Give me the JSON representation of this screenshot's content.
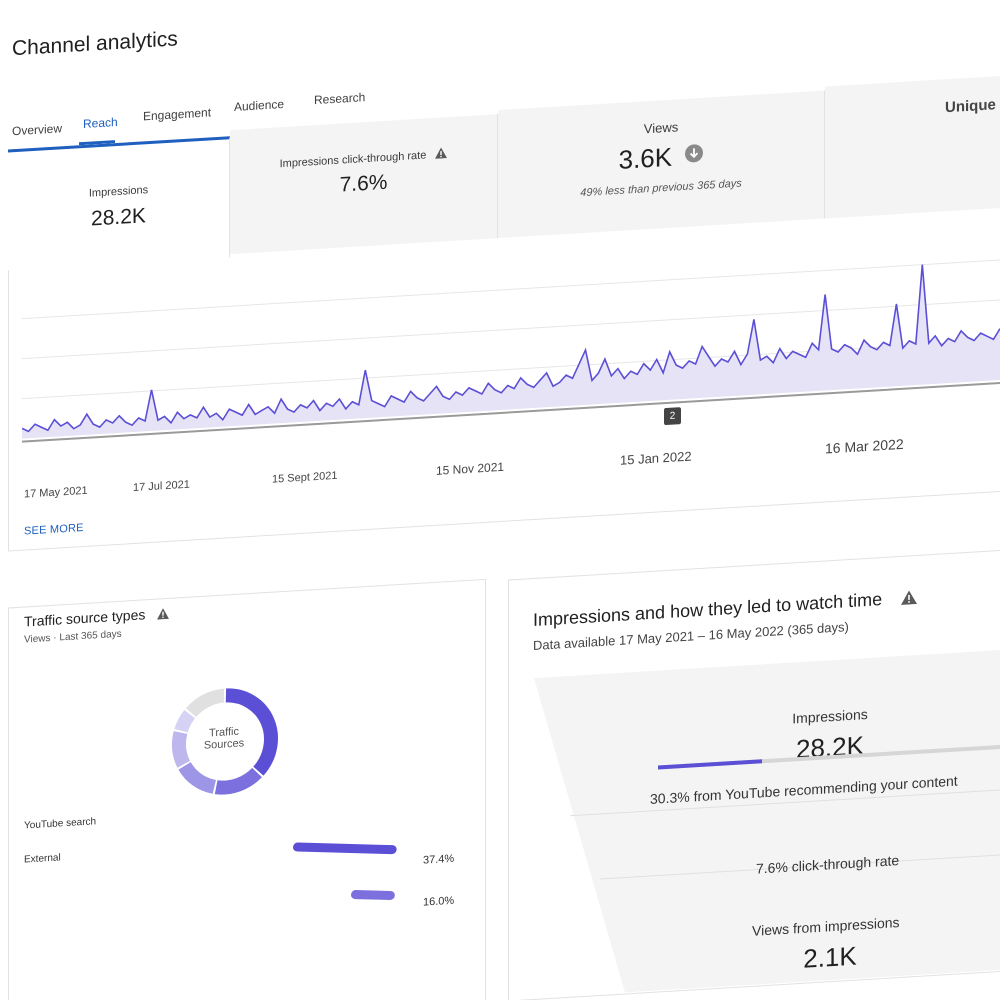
{
  "header": {
    "title": "Channel analytics",
    "tabs": [
      {
        "label": "Overview"
      },
      {
        "label": "Reach"
      },
      {
        "label": "Engagement"
      },
      {
        "label": "Audience"
      },
      {
        "label": "Research"
      }
    ],
    "active_tab": "Reach"
  },
  "metrics": [
    {
      "label": "Impressions",
      "value": "28.2K",
      "note": ""
    },
    {
      "label": "Impressions click-through rate",
      "value": "7.6%",
      "note": ""
    },
    {
      "label": "Views",
      "value": "3.6K",
      "note": "49% less than previous 365 days"
    },
    {
      "label": "Unique",
      "value": "",
      "note": ""
    }
  ],
  "chart": {
    "x_ticks": [
      "17 May 2021",
      "17 Jul 2021",
      "15 Sept 2021",
      "15 Nov 2021",
      "15 Jan 2022",
      "16 Mar 2022"
    ],
    "marker": "2",
    "see_more": "SEE MORE",
    "line_color": "#5b4fd6",
    "fill_color": "#e6e3f7"
  },
  "chart_data": {
    "type": "area",
    "x_range": [
      "17 May 2021",
      "16 May 2022"
    ],
    "values": [
      3,
      2,
      4,
      3,
      2,
      5,
      3,
      4,
      2,
      3,
      6,
      3,
      2,
      4,
      3,
      5,
      3,
      2,
      4,
      3,
      12,
      3,
      4,
      2,
      5,
      3,
      4,
      3,
      6,
      3,
      4,
      2,
      5,
      4,
      3,
      6,
      3,
      4,
      5,
      3,
      7,
      4,
      3,
      5,
      4,
      6,
      3,
      5,
      4,
      6,
      3,
      5,
      4,
      14,
      5,
      4,
      3,
      6,
      5,
      4,
      7,
      5,
      4,
      6,
      8,
      5,
      4,
      6,
      5,
      7,
      6,
      5,
      8,
      6,
      5,
      7,
      6,
      9,
      7,
      6,
      8,
      10,
      6,
      7,
      9,
      8,
      12,
      16,
      7,
      9,
      13,
      8,
      10,
      7,
      9,
      8,
      11,
      9,
      12,
      8,
      14,
      10,
      9,
      11,
      10,
      15,
      12,
      9,
      11,
      10,
      13,
      9,
      12,
      22,
      10,
      11,
      9,
      13,
      10,
      12,
      11,
      10,
      14,
      12,
      28,
      12,
      11,
      13,
      12,
      10,
      14,
      12,
      11,
      13,
      12,
      24,
      11,
      13,
      12,
      35,
      12,
      14,
      11,
      13,
      12,
      15,
      13,
      12,
      14,
      13,
      12,
      15
    ]
  },
  "traffic": {
    "title": "Traffic source types",
    "subtitle": "Views · Last 365 days",
    "donut_center": [
      "Traffic",
      "Sources"
    ],
    "donut_segments": [
      {
        "value": 37.4,
        "color": "#5b4fd6"
      },
      {
        "value": 16.0,
        "color": "#7b70de"
      },
      {
        "value": 14.0,
        "color": "#9d95e6"
      },
      {
        "value": 12.0,
        "color": "#bdb7ee"
      },
      {
        "value": 7.0,
        "color": "#d6d2f4"
      },
      {
        "value": 13.6,
        "color": "#e0e0e0"
      }
    ],
    "sources": [
      {
        "label": "YouTube search",
        "pct": "",
        "bar": 0
      },
      {
        "label": "External",
        "pct": "37.4%",
        "bar": 37.4,
        "color": "#5b4fd6"
      },
      {
        "label": "",
        "pct": "16.0%",
        "bar": 16.0,
        "color": "#7b70de"
      }
    ]
  },
  "funnel": {
    "title": "Impressions and how they led to watch time",
    "subtitle": "Data available 17 May 2021 – 16 May 2022 (365 days)",
    "impressions_label": "Impressions",
    "impressions_value": "28.2K",
    "recommend_pct": 30.3,
    "recommend_text": "30.3% from YouTube recommending your content",
    "ctr_text": "7.6% click-through rate",
    "views_label": "Views from impressions",
    "views_value": "2.1K"
  }
}
